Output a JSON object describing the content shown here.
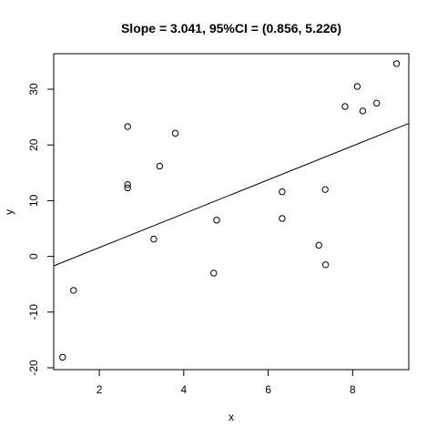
{
  "chart_data": {
    "type": "scatter",
    "title": "Slope = 3.041, 95%CI = (0.856, 5.226)",
    "xlabel": "x",
    "ylabel": "y",
    "xlim": [
      0.92,
      9.33
    ],
    "ylim": [
      -20.33,
      36.38
    ],
    "x_ticks": [
      2,
      4,
      6,
      8
    ],
    "y_ticks": [
      -20,
      -10,
      0,
      10,
      20,
      30
    ],
    "grid": false,
    "points": [
      {
        "x": 1.13,
        "y": -18.1
      },
      {
        "x": 1.39,
        "y": -6.1
      },
      {
        "x": 2.67,
        "y": 23.3
      },
      {
        "x": 2.67,
        "y": 12.9
      },
      {
        "x": 2.67,
        "y": 12.3
      },
      {
        "x": 3.29,
        "y": 3.1
      },
      {
        "x": 3.43,
        "y": 16.2
      },
      {
        "x": 3.8,
        "y": 22.1
      },
      {
        "x": 4.71,
        "y": -3.0
      },
      {
        "x": 4.78,
        "y": 6.5
      },
      {
        "x": 6.33,
        "y": 11.6
      },
      {
        "x": 6.33,
        "y": 6.8
      },
      {
        "x": 7.2,
        "y": 2.0
      },
      {
        "x": 7.35,
        "y": 12.0
      },
      {
        "x": 7.36,
        "y": -1.5
      },
      {
        "x": 7.82,
        "y": 26.9
      },
      {
        "x": 8.11,
        "y": 30.5
      },
      {
        "x": 8.24,
        "y": 26.1
      },
      {
        "x": 8.57,
        "y": 27.5
      },
      {
        "x": 9.04,
        "y": 34.6
      }
    ],
    "fit_line": {
      "slope": 3.041,
      "intercept": -4.5
    }
  }
}
